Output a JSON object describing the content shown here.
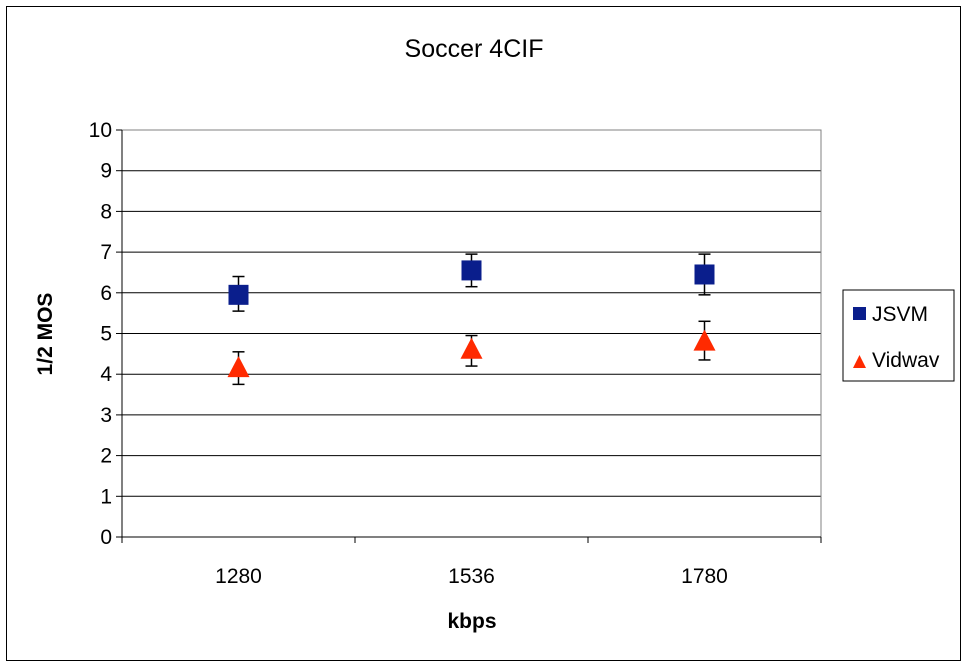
{
  "chart_data": {
    "type": "scatter",
    "title": "Soccer 4CIF",
    "xlabel": "kbps",
    "ylabel": "1/2 MOS",
    "categories": [
      "1280",
      "1536",
      "1780"
    ],
    "ylim": [
      0,
      10
    ],
    "yticks": [
      "0",
      "1",
      "2",
      "3",
      "4",
      "5",
      "6",
      "7",
      "8",
      "9",
      "10"
    ],
    "grid": true,
    "legend_position": "right",
    "series": [
      {
        "name": "JSVM",
        "marker": "square",
        "color": "#0a1e8c",
        "values": [
          5.95,
          6.55,
          6.45
        ],
        "error_low": [
          5.55,
          6.15,
          5.95
        ],
        "error_high": [
          6.4,
          6.95,
          6.95
        ]
      },
      {
        "name": "Vidwav",
        "marker": "triangle",
        "color": "#ff2a00",
        "values": [
          4.15,
          4.6,
          4.8
        ],
        "error_low": [
          3.75,
          4.2,
          4.35
        ],
        "error_high": [
          4.55,
          4.95,
          5.3
        ]
      }
    ]
  }
}
